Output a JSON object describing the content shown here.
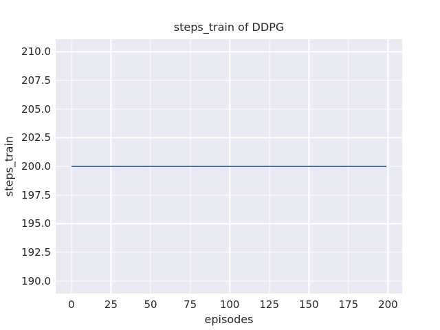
{
  "chart_data": {
    "type": "line",
    "title": "steps_train of DDPG",
    "xlabel": "episodes",
    "ylabel": "steps_train",
    "series": [
      {
        "name": "steps_train",
        "color": "#4c72b0",
        "x": [
          0,
          199
        ],
        "y": [
          200.0,
          200.0
        ]
      }
    ],
    "xlim": [
      -9.95,
      208.95
    ],
    "ylim": [
      188.9,
      211.1
    ],
    "x_ticks": [
      0,
      25,
      50,
      75,
      100,
      125,
      150,
      175,
      200
    ],
    "x_tick_labels": [
      "0",
      "25",
      "50",
      "75",
      "100",
      "125",
      "150",
      "175",
      "200"
    ],
    "y_ticks": [
      190.0,
      192.5,
      195.0,
      197.5,
      200.0,
      202.5,
      205.0,
      207.5,
      210.0
    ],
    "y_tick_labels": [
      "190.0",
      "192.5",
      "195.0",
      "197.5",
      "200.0",
      "202.5",
      "205.0",
      "207.5",
      "210.0"
    ],
    "grid": true,
    "legend": null,
    "style": {
      "figure_bg": "#ffffff",
      "axes_bg": "#eaeaf2",
      "grid_color": "#ffffff",
      "text_color": "#262626",
      "line_width": 2
    }
  }
}
